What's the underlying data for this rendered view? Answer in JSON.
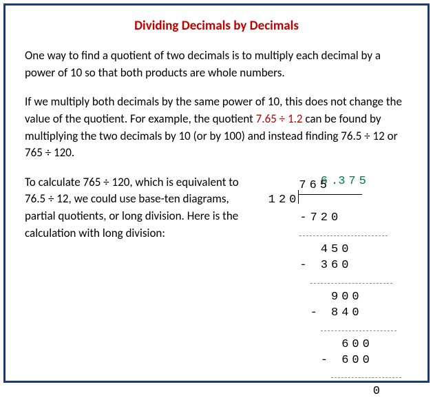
{
  "title": "Dividing Decimals by Decimals",
  "para1": "One way to find a quotient of two decimals is to multiply each decimal by a power of 10 so that both products are whole numbers.",
  "para2_a": "If we multiply both decimals by the same power of 10, this does not change the value of the quotient. For example, the quotient ",
  "para2_highlight": "7.65 ÷ 1.2",
  "para2_b": " can be found by multiplying the two decimals by 10 (or by 100) and instead finding  76.5 ÷ 12 or 765 ÷ 120.",
  "para3": "To calculate 765 ÷ 120, which is equivalent to 76.5 ÷ 12, we could use base-ten diagrams, partial quotients, or long division. Here is the calculation with long division:",
  "division": {
    "divisor": "120",
    "dividend": "765",
    "quotient_digits": "6.375",
    "steps": [
      {
        "sub": "-720",
        "result": "450"
      },
      {
        "sub": "- 360",
        "result": "900"
      },
      {
        "sub": "- 840",
        "result": "600"
      },
      {
        "sub": "- 600",
        "result": "0"
      }
    ],
    "colors": {
      "quotient": "#007a3d",
      "text": "#000000",
      "highlight": "#c00000",
      "border": "#1a3a7a"
    }
  }
}
